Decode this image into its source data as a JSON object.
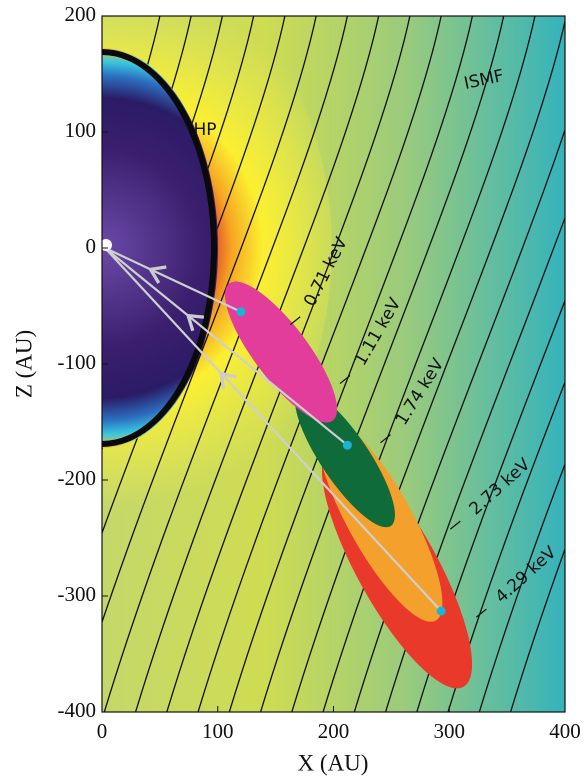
{
  "chart_data": {
    "type": "scatter",
    "xlabel": "X (AU)",
    "ylabel": "Z (AU)",
    "xlim": [
      0,
      400
    ],
    "ylim": [
      -400,
      200
    ],
    "xticks": [
      0,
      100,
      200,
      300,
      400
    ],
    "yticks": [
      200,
      100,
      0,
      -100,
      -200,
      -300,
      -400
    ],
    "x": [
      120,
      212,
      293
    ],
    "values": [
      -55,
      -170,
      -313
    ],
    "color": "#19b4d8",
    "annotations": [
      "HP",
      "ISMF",
      "0.71 keV",
      "1.11 keV",
      "1.74 keV",
      "2.73 keV",
      "4.29 keV"
    ]
  }
}
